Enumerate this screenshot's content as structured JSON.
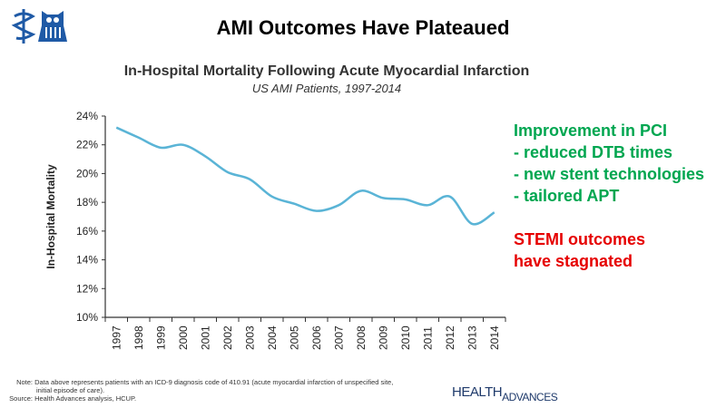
{
  "slide": {
    "title": "AMI Outcomes Have Plateaued",
    "right_green": [
      "Improvement in PCI",
      "- reduced DTB times",
      "- new stent technologies",
      "- tailored APT"
    ],
    "right_red": [
      "STEMI outcomes",
      "have stagnated"
    ],
    "note_label": "Note:",
    "note_text": "Data above represents patients with an ICD-9 diagnosis code of 410.91 (acute myocardial infarction of unspecified site,",
    "note_text2": "initial episode of care).",
    "source_label": "Source:",
    "source_text": "Health Advances analysis, HCUP.",
    "logo_health": "HEALTH",
    "logo_advances": "ADVANCES",
    "colors": {
      "line": "#5ab4d6",
      "green": "#00a650",
      "red": "#e60000",
      "logo": "#1f5aa6"
    }
  },
  "chart_data": {
    "type": "line",
    "title": "In-Hospital Mortality Following Acute Myocardial Infarction",
    "subtitle": "US AMI Patients, 1997-2014",
    "xlabel": "",
    "ylabel": "In-Hospital Mortality",
    "ylim": [
      10,
      24
    ],
    "yticks": [
      "10%",
      "12%",
      "14%",
      "16%",
      "18%",
      "20%",
      "22%",
      "24%"
    ],
    "categories": [
      "1997",
      "1998",
      "1999",
      "2000",
      "2001",
      "2002",
      "2003",
      "2004",
      "2005",
      "2006",
      "2007",
      "2008",
      "2009",
      "2010",
      "2011",
      "2012",
      "2013",
      "2014"
    ],
    "series": [
      {
        "name": "In-Hospital Mortality",
        "values": [
          23.2,
          22.5,
          21.8,
          22.0,
          21.2,
          20.1,
          19.6,
          18.4,
          17.9,
          17.4,
          17.8,
          18.8,
          18.3,
          18.2,
          17.8,
          18.4,
          16.5,
          17.3
        ]
      }
    ],
    "grid": false
  }
}
